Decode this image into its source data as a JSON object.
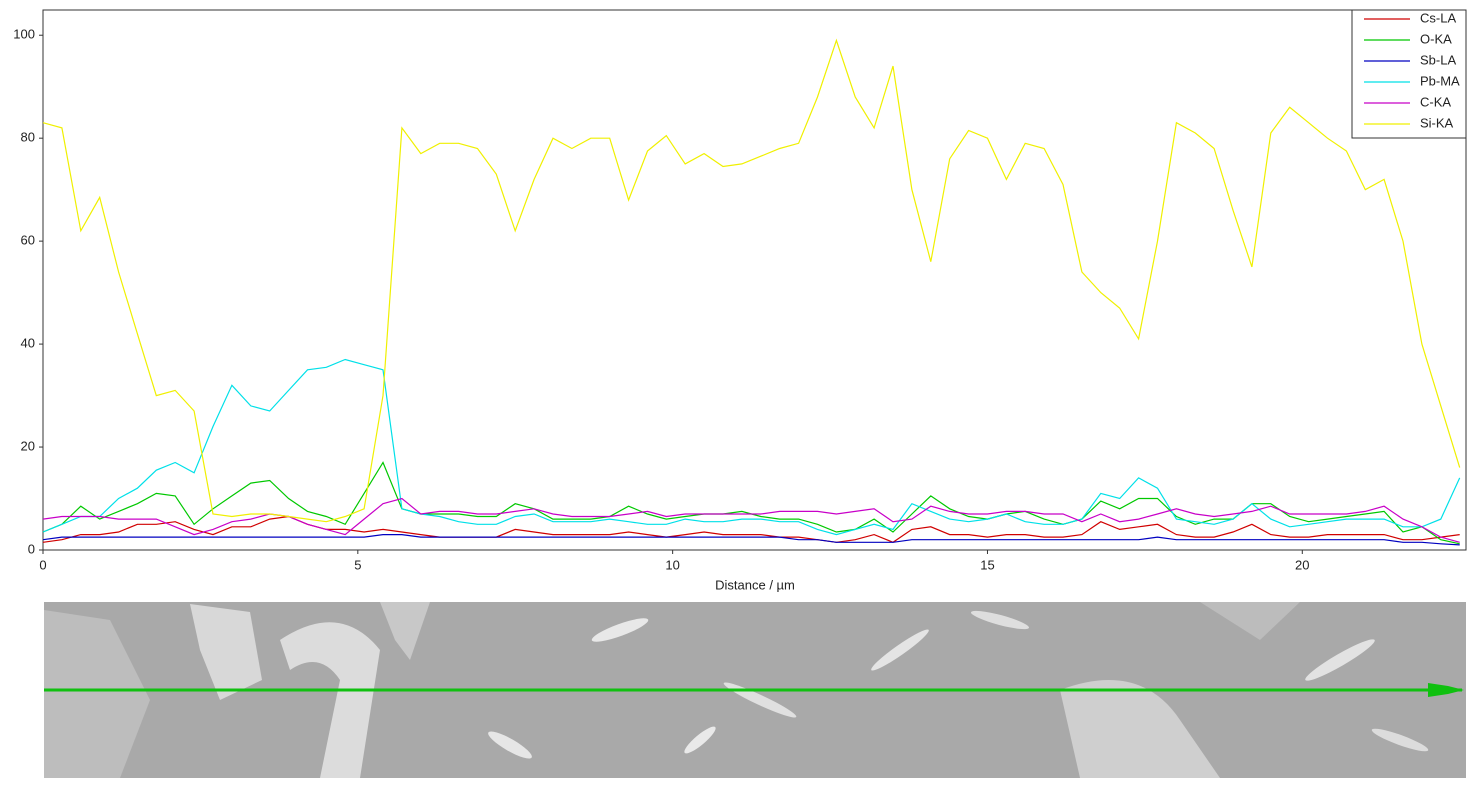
{
  "chart_data": {
    "type": "line",
    "x_label": "Distance / µm",
    "x": [
      0,
      0.3,
      0.6,
      0.9,
      1.2,
      1.5,
      1.8,
      2.1,
      2.4,
      2.7,
      3,
      3.3,
      3.6,
      3.9,
      4.2,
      4.5,
      4.8,
      5.1,
      5.4,
      5.7,
      6,
      6.3,
      6.6,
      6.9,
      7.2,
      7.5,
      7.8,
      8.1,
      8.4,
      8.7,
      9,
      9.3,
      9.6,
      9.9,
      10.2,
      10.5,
      10.8,
      11.1,
      11.4,
      11.7,
      12,
      12.3,
      12.6,
      12.9,
      13.2,
      13.5,
      13.8,
      14.1,
      14.4,
      14.7,
      15,
      15.3,
      15.6,
      15.9,
      16.2,
      16.5,
      16.8,
      17.1,
      17.4,
      17.7,
      18,
      18.3,
      18.6,
      18.9,
      19.2,
      19.5,
      19.8,
      20.1,
      20.4,
      20.7,
      21,
      21.3,
      21.6,
      21.9,
      22.2,
      22.5
    ],
    "series": [
      {
        "name": "Cs-LA",
        "color": "#d00000",
        "values": [
          1.5,
          2,
          3,
          3,
          3.5,
          5,
          5,
          5.5,
          4,
          3,
          4.5,
          4.5,
          6,
          6.5,
          5,
          4,
          4,
          3.5,
          4,
          3.5,
          3,
          2.5,
          2.5,
          2.5,
          2.5,
          4,
          3.5,
          3,
          3,
          3,
          3,
          3.5,
          3,
          2.5,
          3,
          3.5,
          3,
          3,
          3,
          2.5,
          2.5,
          2,
          1.5,
          2,
          3,
          1.5,
          4,
          4.5,
          3,
          3,
          2.5,
          3,
          3,
          2.5,
          2.5,
          3,
          5.5,
          4,
          4.5,
          5,
          3,
          2.5,
          2.5,
          3.5,
          5,
          3,
          2.5,
          2.5,
          3,
          3,
          3,
          3,
          2,
          2,
          2.5,
          3
        ]
      },
      {
        "name": "O-KA",
        "color": "#00c800",
        "values": [
          3.5,
          5,
          8.5,
          6,
          7.5,
          9,
          11,
          10.5,
          5,
          8,
          10.5,
          13,
          13.5,
          10,
          7.5,
          6.5,
          5,
          11,
          17,
          8,
          7,
          7,
          7,
          6.5,
          6.5,
          9,
          8,
          6,
          6,
          6,
          6.5,
          8.5,
          7,
          6,
          6.5,
          7,
          7,
          7.5,
          6.5,
          6,
          6,
          5,
          3.5,
          4,
          6,
          3.5,
          7,
          10.5,
          8,
          6.5,
          6,
          7,
          7.5,
          6,
          5,
          6,
          9.5,
          8,
          10,
          10,
          6.5,
          5,
          6,
          6,
          9,
          9,
          6.5,
          5.5,
          6,
          6.5,
          7,
          7.5,
          3.5,
          4.5,
          2,
          1.2
        ]
      },
      {
        "name": "Sb-LA",
        "color": "#0000c0",
        "values": [
          2,
          2.5,
          2.5,
          2.5,
          2.5,
          2.5,
          2.5,
          2.5,
          2.5,
          2.5,
          2.5,
          2.5,
          2.5,
          2.5,
          2.5,
          2.5,
          2.5,
          2.5,
          3,
          3,
          2.5,
          2.5,
          2.5,
          2.5,
          2.5,
          2.5,
          2.5,
          2.5,
          2.5,
          2.5,
          2.5,
          2.5,
          2.5,
          2.5,
          2.5,
          2.5,
          2.5,
          2.5,
          2.5,
          2.5,
          2,
          2,
          1.5,
          1.5,
          1.5,
          1.5,
          2,
          2,
          2,
          2,
          2,
          2,
          2,
          2,
          2,
          2,
          2,
          2,
          2,
          2.5,
          2,
          2,
          2,
          2,
          2,
          2,
          2,
          2,
          2,
          2,
          2,
          2,
          1.5,
          1.5,
          1.2,
          1
        ]
      },
      {
        "name": "Pb-MA",
        "color": "#00e0e8",
        "values": [
          3.5,
          5,
          6.5,
          6.5,
          10,
          12,
          15.5,
          17,
          15,
          24,
          32,
          28,
          27,
          31,
          35,
          35.5,
          37,
          36,
          35,
          8,
          7,
          6.5,
          5.5,
          5,
          5,
          6.5,
          7,
          5.5,
          5.5,
          5.5,
          6,
          5.5,
          5,
          5,
          6,
          5.5,
          5.5,
          6,
          6,
          5.5,
          5.5,
          4,
          3,
          4,
          5,
          4,
          9,
          7.5,
          6,
          5.5,
          6,
          7,
          5.5,
          5,
          5,
          6,
          11,
          10,
          14,
          12,
          6,
          5.5,
          5,
          6,
          9,
          6,
          4.5,
          5,
          5.5,
          6,
          6,
          6,
          4.5,
          4.5,
          6,
          14
        ]
      },
      {
        "name": "C-KA",
        "color": "#c800c8",
        "values": [
          6,
          6.5,
          6.5,
          6.5,
          6,
          6,
          6,
          4.5,
          3,
          4,
          5.5,
          6,
          7,
          6.5,
          5,
          4,
          3,
          6,
          9,
          10,
          7,
          7.5,
          7.5,
          7,
          7,
          7.5,
          8,
          7,
          6.5,
          6.5,
          6.5,
          7,
          7.5,
          6.5,
          7,
          7,
          7,
          7,
          7,
          7.5,
          7.5,
          7.5,
          7,
          7.5,
          8,
          5.5,
          6,
          8.5,
          7.5,
          7,
          7,
          7.5,
          7.5,
          7,
          7,
          5.5,
          7,
          5.5,
          6,
          7,
          8,
          7,
          6.5,
          7,
          7.5,
          8.5,
          7,
          7,
          7,
          7,
          7.5,
          8.5,
          6,
          4.5,
          2.5,
          1.5
        ]
      },
      {
        "name": "Si-KA",
        "color": "#f0f000",
        "values": [
          83,
          82,
          62,
          68.5,
          54,
          42,
          30,
          31,
          27,
          7,
          6.5,
          7,
          7,
          6.5,
          6,
          5.5,
          6.5,
          8,
          30,
          82,
          77,
          79,
          79,
          78,
          73,
          62,
          72,
          80,
          78,
          80,
          80,
          68,
          77.5,
          80.5,
          75,
          77,
          74.5,
          75,
          76.5,
          78,
          79,
          88,
          99,
          88,
          82,
          94,
          70,
          56,
          76,
          81.5,
          80,
          72,
          79,
          78,
          71,
          54,
          50,
          47,
          41,
          60,
          83,
          81,
          78,
          66,
          55,
          81,
          86,
          83,
          80,
          77.5,
          70,
          72,
          60,
          40,
          28,
          16
        ]
      }
    ],
    "xlim": [
      0,
      22.6
    ],
    "xticks": [
      0,
      5,
      10,
      15,
      20
    ],
    "ylim": [
      0,
      104.9
    ],
    "yticks": [
      0,
      20,
      40,
      60,
      80,
      100
    ],
    "grid": false,
    "legend": "upper-right"
  }
}
